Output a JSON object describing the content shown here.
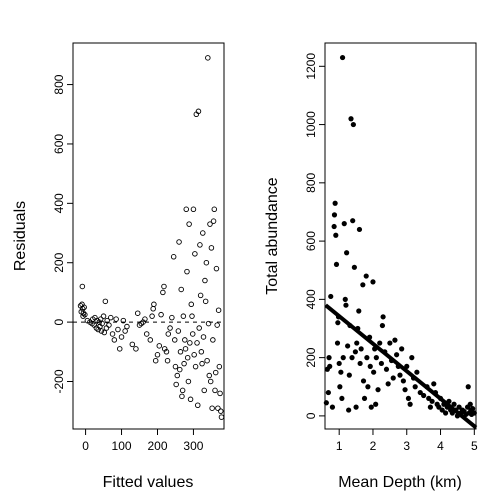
{
  "chart_data": [
    {
      "type": "scatter",
      "name": "residuals-panel",
      "title": "",
      "xlabel": "Fitted values",
      "ylabel": "Residuals",
      "xlim": [
        -35,
        385
      ],
      "ylim": [
        -360,
        940
      ],
      "xticks": [
        0,
        100,
        200,
        300
      ],
      "yticks": [
        -200,
        0,
        200,
        400,
        600,
        800
      ],
      "tick_labels_x": [
        "0",
        "100",
        "200",
        "300"
      ],
      "tick_labels_y": [
        "-200",
        "0",
        "200",
        "400",
        "600",
        "800"
      ],
      "marker": "open-circle",
      "reference_line": {
        "y": 0,
        "style": "dashed"
      },
      "grid": false,
      "points": [
        [
          -12,
          35
        ],
        [
          -10,
          60
        ],
        [
          -8,
          45
        ],
        [
          -6,
          30
        ],
        [
          -4,
          50
        ],
        [
          -2,
          25
        ],
        [
          -14,
          55
        ],
        [
          -9,
          120
        ],
        [
          -7,
          20
        ],
        [
          5,
          5
        ],
        [
          12,
          0
        ],
        [
          18,
          -5
        ],
        [
          20,
          10
        ],
        [
          24,
          -10
        ],
        [
          26,
          15
        ],
        [
          30,
          -20
        ],
        [
          32,
          5
        ],
        [
          35,
          -25
        ],
        [
          38,
          0
        ],
        [
          40,
          -15
        ],
        [
          42,
          10
        ],
        [
          44,
          -30
        ],
        [
          46,
          -5
        ],
        [
          50,
          20
        ],
        [
          52,
          -35
        ],
        [
          55,
          70
        ],
        [
          58,
          -20
        ],
        [
          60,
          5
        ],
        [
          65,
          -10
        ],
        [
          70,
          15
        ],
        [
          75,
          -40
        ],
        [
          80,
          -60
        ],
        [
          85,
          10
        ],
        [
          90,
          -25
        ],
        [
          95,
          -90
        ],
        [
          100,
          -50
        ],
        [
          105,
          5
        ],
        [
          110,
          -30
        ],
        [
          115,
          -15
        ],
        [
          130,
          -75
        ],
        [
          140,
          -90
        ],
        [
          145,
          30
        ],
        [
          150,
          -10
        ],
        [
          155,
          -5
        ],
        [
          160,
          0
        ],
        [
          165,
          10
        ],
        [
          170,
          -40
        ],
        [
          180,
          -60
        ],
        [
          185,
          20
        ],
        [
          188,
          45
        ],
        [
          190,
          60
        ],
        [
          195,
          -130
        ],
        [
          200,
          -110
        ],
        [
          205,
          -80
        ],
        [
          210,
          25
        ],
        [
          215,
          100
        ],
        [
          218,
          120
        ],
        [
          220,
          -90
        ],
        [
          225,
          -100
        ],
        [
          228,
          -130
        ],
        [
          230,
          -40
        ],
        [
          235,
          -20
        ],
        [
          240,
          15
        ],
        [
          245,
          220
        ],
        [
          248,
          -60
        ],
        [
          250,
          -150
        ],
        [
          252,
          -210
        ],
        [
          255,
          -180
        ],
        [
          258,
          -30
        ],
        [
          260,
          270
        ],
        [
          262,
          -160
        ],
        [
          264,
          -100
        ],
        [
          266,
          110
        ],
        [
          268,
          -250
        ],
        [
          270,
          -230
        ],
        [
          272,
          20
        ],
        [
          274,
          -140
        ],
        [
          276,
          -60
        ],
        [
          278,
          -90
        ],
        [
          280,
          380
        ],
        [
          282,
          170
        ],
        [
          284,
          -120
        ],
        [
          286,
          -200
        ],
        [
          288,
          330
        ],
        [
          290,
          -70
        ],
        [
          292,
          -260
        ],
        [
          294,
          60
        ],
        [
          296,
          20
        ],
        [
          298,
          -40
        ],
        [
          300,
          380
        ],
        [
          302,
          -110
        ],
        [
          304,
          230
        ],
        [
          306,
          -150
        ],
        [
          308,
          700
        ],
        [
          310,
          -70
        ],
        [
          312,
          -280
        ],
        [
          314,
          710
        ],
        [
          316,
          -20
        ],
        [
          318,
          260
        ],
        [
          320,
          90
        ],
        [
          322,
          -100
        ],
        [
          324,
          -140
        ],
        [
          326,
          300
        ],
        [
          328,
          -50
        ],
        [
          330,
          -230
        ],
        [
          332,
          140
        ],
        [
          334,
          70
        ],
        [
          336,
          200
        ],
        [
          338,
          -130
        ],
        [
          340,
          890
        ],
        [
          342,
          -5
        ],
        [
          344,
          -180
        ],
        [
          346,
          330
        ],
        [
          348,
          -200
        ],
        [
          350,
          250
        ],
        [
          352,
          -290
        ],
        [
          354,
          -60
        ],
        [
          356,
          340
        ],
        [
          358,
          380
        ],
        [
          360,
          -230
        ],
        [
          362,
          -170
        ],
        [
          364,
          180
        ],
        [
          366,
          -10
        ],
        [
          368,
          -290
        ],
        [
          370,
          40
        ],
        [
          372,
          -150
        ],
        [
          374,
          -240
        ],
        [
          376,
          -300
        ],
        [
          378,
          -320
        ]
      ]
    },
    {
      "type": "scatter",
      "name": "abundance-panel",
      "title": "",
      "xlabel": "Mean Depth (km)",
      "ylabel": "Total abundance",
      "xlim": [
        0.58,
        5.05
      ],
      "ylim": [
        -45,
        1280
      ],
      "xticks": [
        1,
        2,
        3,
        4,
        5
      ],
      "yticks": [
        0,
        200,
        400,
        600,
        800,
        1000,
        1200
      ],
      "tick_labels_x": [
        "1",
        "2",
        "3",
        "4",
        "5"
      ],
      "tick_labels_y": [
        "0",
        "200",
        "400",
        "600",
        "800",
        "1000",
        "1200"
      ],
      "marker": "filled-circle",
      "fit_line": {
        "x": [
          0.6,
          5.05
        ],
        "y": [
          380,
          -40
        ]
      },
      "grid": false,
      "points": [
        [
          0.62,
          45
        ],
        [
          0.65,
          160
        ],
        [
          0.68,
          80
        ],
        [
          0.7,
          200
        ],
        [
          0.72,
          170
        ],
        [
          0.75,
          410
        ],
        [
          0.8,
          30
        ],
        [
          0.85,
          650
        ],
        [
          0.86,
          690
        ],
        [
          0.88,
          730
        ],
        [
          0.9,
          620
        ],
        [
          0.92,
          520
        ],
        [
          0.95,
          250
        ],
        [
          0.96,
          320
        ],
        [
          0.98,
          340
        ],
        [
          1.0,
          180
        ],
        [
          1.02,
          100
        ],
        [
          1.05,
          150
        ],
        [
          1.08,
          60
        ],
        [
          1.1,
          1230
        ],
        [
          1.12,
          200
        ],
        [
          1.15,
          660
        ],
        [
          1.18,
          400
        ],
        [
          1.2,
          380
        ],
        [
          1.22,
          560
        ],
        [
          1.25,
          240
        ],
        [
          1.28,
          20
        ],
        [
          1.3,
          140
        ],
        [
          1.32,
          310
        ],
        [
          1.35,
          1020
        ],
        [
          1.38,
          200
        ],
        [
          1.4,
          670
        ],
        [
          1.42,
          1000
        ],
        [
          1.45,
          510
        ],
        [
          1.48,
          220
        ],
        [
          1.5,
          30
        ],
        [
          1.52,
          250
        ],
        [
          1.55,
          300
        ],
        [
          1.58,
          360
        ],
        [
          1.6,
          640
        ],
        [
          1.62,
          180
        ],
        [
          1.65,
          230
        ],
        [
          1.7,
          450
        ],
        [
          1.72,
          120
        ],
        [
          1.75,
          60
        ],
        [
          1.8,
          480
        ],
        [
          1.82,
          200
        ],
        [
          1.85,
          100
        ],
        [
          1.9,
          270
        ],
        [
          1.92,
          170
        ],
        [
          1.95,
          30
        ],
        [
          2.0,
          460
        ],
        [
          2.02,
          150
        ],
        [
          2.05,
          230
        ],
        [
          2.08,
          40
        ],
        [
          2.1,
          200
        ],
        [
          2.15,
          90
        ],
        [
          2.2,
          250
        ],
        [
          2.25,
          180
        ],
        [
          2.28,
          310
        ],
        [
          2.3,
          340
        ],
        [
          2.35,
          220
        ],
        [
          2.4,
          160
        ],
        [
          2.45,
          110
        ],
        [
          2.5,
          250
        ],
        [
          2.55,
          190
        ],
        [
          2.6,
          130
        ],
        [
          2.65,
          260
        ],
        [
          2.7,
          210
        ],
        [
          2.75,
          170
        ],
        [
          2.8,
          140
        ],
        [
          2.85,
          230
        ],
        [
          2.9,
          120
        ],
        [
          2.95,
          90
        ],
        [
          3.0,
          170
        ],
        [
          3.05,
          60
        ],
        [
          3.1,
          40
        ],
        [
          3.15,
          200
        ],
        [
          3.2,
          130
        ],
        [
          3.25,
          100
        ],
        [
          3.3,
          150
        ],
        [
          3.4,
          80
        ],
        [
          3.5,
          70
        ],
        [
          3.6,
          100
        ],
        [
          3.65,
          60
        ],
        [
          3.7,
          30
        ],
        [
          3.75,
          50
        ],
        [
          3.8,
          110
        ],
        [
          3.85,
          80
        ],
        [
          3.9,
          40
        ],
        [
          3.95,
          30
        ],
        [
          4.0,
          60
        ],
        [
          4.05,
          20
        ],
        [
          4.1,
          40
        ],
        [
          4.15,
          10
        ],
        [
          4.2,
          30
        ],
        [
          4.25,
          50
        ],
        [
          4.3,
          20
        ],
        [
          4.35,
          10
        ],
        [
          4.4,
          40
        ],
        [
          4.45,
          20
        ],
        [
          4.5,
          0
        ],
        [
          4.55,
          30
        ],
        [
          4.6,
          10
        ],
        [
          4.65,
          20
        ],
        [
          4.7,
          15
        ],
        [
          4.75,
          5
        ],
        [
          4.8,
          30
        ],
        [
          4.82,
          100
        ],
        [
          4.85,
          10
        ],
        [
          4.88,
          40
        ],
        [
          4.9,
          20
        ],
        [
          4.92,
          5
        ],
        [
          4.95,
          25
        ],
        [
          5.0,
          10
        ]
      ]
    }
  ]
}
